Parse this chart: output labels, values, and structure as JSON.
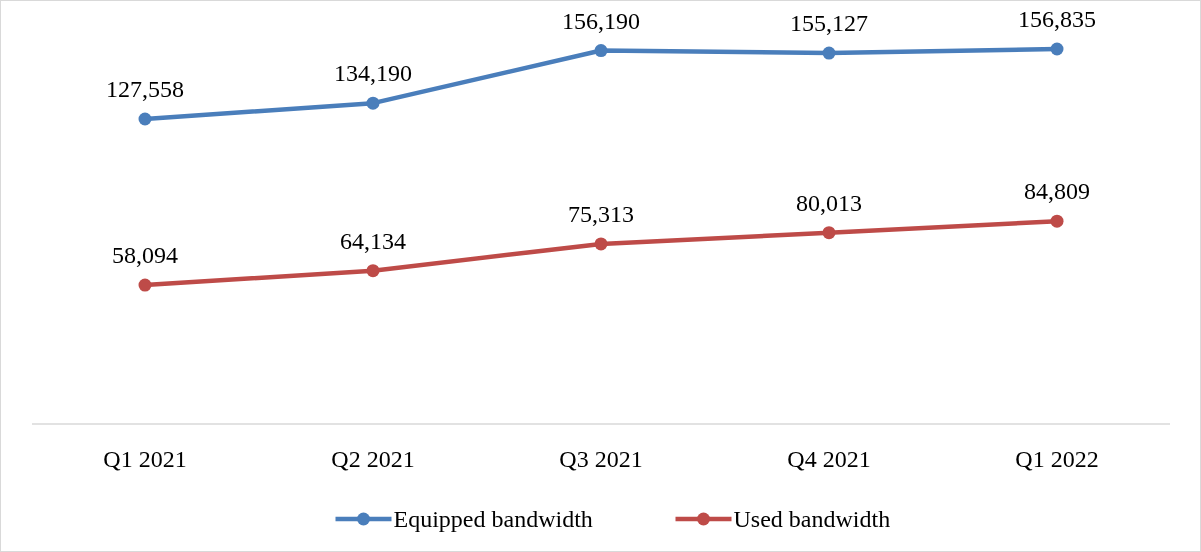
{
  "chart_data": {
    "type": "line",
    "categories": [
      "Q1 2021",
      "Q2 2021",
      "Q3 2021",
      "Q4 2021",
      "Q1 2022"
    ],
    "series": [
      {
        "name": "Equipped bandwidth",
        "color": "#4a7ebb",
        "values": [
          127558,
          134190,
          156190,
          155127,
          156835
        ],
        "value_labels": [
          "127,558",
          "134,190",
          "156,190",
          "155,127",
          "156,835"
        ]
      },
      {
        "name": "Used bandwidth",
        "color": "#be4b48",
        "values": [
          58094,
          64134,
          75313,
          80013,
          84809
        ],
        "value_labels": [
          "58,094",
          "64,134",
          "75,313",
          "80,013",
          "84,809"
        ]
      }
    ],
    "marker": "circle",
    "line_style": "solid",
    "legend": "bottom"
  }
}
